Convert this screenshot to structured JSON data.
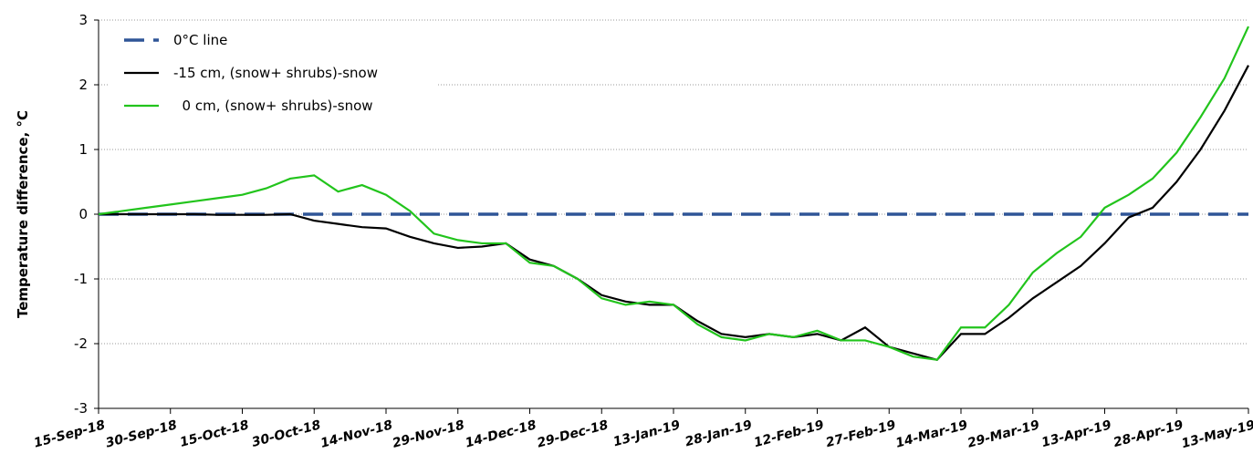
{
  "chart_data": {
    "type": "line",
    "y_label": "Temperature difference,  °C",
    "x": [
      "15-Sep-18",
      "20-Sep-18",
      "25-Sep-18",
      "30-Sep-18",
      "5-Oct-18",
      "10-Oct-18",
      "15-Oct-18",
      "20-Oct-18",
      "25-Oct-18",
      "30-Oct-18",
      "4-Nov-18",
      "9-Nov-18",
      "14-Nov-18",
      "19-Nov-18",
      "24-Nov-18",
      "29-Nov-18",
      "4-Dec-18",
      "9-Dec-18",
      "14-Dec-18",
      "19-Dec-18",
      "24-Dec-18",
      "29-Dec-18",
      "3-Jan-19",
      "8-Jan-19",
      "13-Jan-19",
      "18-Jan-19",
      "23-Jan-19",
      "28-Jan-19",
      "2-Feb-19",
      "7-Feb-19",
      "12-Feb-19",
      "17-Feb-19",
      "22-Feb-19",
      "27-Feb-19",
      "4-Mar-19",
      "9-Mar-19",
      "14-Mar-19",
      "19-Mar-19",
      "24-Mar-19",
      "29-Mar-19",
      "3-Apr-19",
      "8-Apr-19",
      "13-Apr-19",
      "18-Apr-19",
      "23-Apr-19",
      "28-Apr-19",
      "3-May-19",
      "8-May-19",
      "13-May-19"
    ],
    "series": [
      {
        "name": "0°C line",
        "color": "#2f5597",
        "dashed": true,
        "x": [
          "15-Sep-18",
          "13-May-19"
        ],
        "values": [
          0,
          0
        ]
      },
      {
        "name": "-15 cm, (snow+ shrubs)-snow",
        "color": "#000000",
        "values": [
          0,
          0,
          0,
          0,
          0,
          -0.01,
          -0.01,
          -0.01,
          0,
          -0.1,
          -0.15,
          -0.2,
          -0.22,
          -0.35,
          -0.45,
          -0.52,
          -0.5,
          -0.45,
          -0.7,
          -0.8,
          -1.0,
          -1.25,
          -1.35,
          -1.4,
          -1.4,
          -1.65,
          -1.85,
          -1.9,
          -1.85,
          -1.9,
          -1.85,
          -1.95,
          -1.75,
          -2.05,
          -2.15,
          -2.25,
          -1.85,
          -1.85,
          -1.6,
          -1.3,
          -1.05,
          -0.8,
          -0.45,
          -0.05,
          0.1,
          0.5,
          1.0,
          1.6,
          2.3
        ]
      },
      {
        "name": "  0 cm, (snow+ shrubs)-snow",
        "color": "#22c41c",
        "values": [
          0,
          0.05,
          0.1,
          0.15,
          0.2,
          0.25,
          0.3,
          0.4,
          0.55,
          0.6,
          0.35,
          0.45,
          0.3,
          0.05,
          -0.3,
          -0.4,
          -0.45,
          -0.45,
          -0.75,
          -0.8,
          -1.0,
          -1.3,
          -1.4,
          -1.35,
          -1.4,
          -1.7,
          -1.9,
          -1.95,
          -1.85,
          -1.9,
          -1.8,
          -1.95,
          -1.95,
          -2.05,
          -2.2,
          -2.25,
          -1.75,
          -1.75,
          -1.4,
          -0.9,
          -0.6,
          -0.35,
          0.1,
          0.3,
          0.55,
          0.95,
          1.5,
          2.1,
          2.9
        ]
      }
    ],
    "xlim": [
      "15-Sep-18",
      "13-May-19"
    ],
    "xticks": [
      "15-Sep-18",
      "30-Sep-18",
      "15-Oct-18",
      "30-Oct-18",
      "14-Nov-18",
      "29-Nov-18",
      "14-Dec-18",
      "29-Dec-18",
      "13-Jan-19",
      "28-Jan-19",
      "12-Feb-19",
      "27-Feb-19",
      "14-Mar-19",
      "29-Mar-19",
      "13-Apr-19",
      "28-Apr-19",
      "13-May-19"
    ],
    "ylim": [
      -3,
      3
    ],
    "yticks": [
      -3,
      -2,
      -1,
      0,
      1,
      2,
      3
    ],
    "grid": true,
    "legend": "upper left"
  }
}
